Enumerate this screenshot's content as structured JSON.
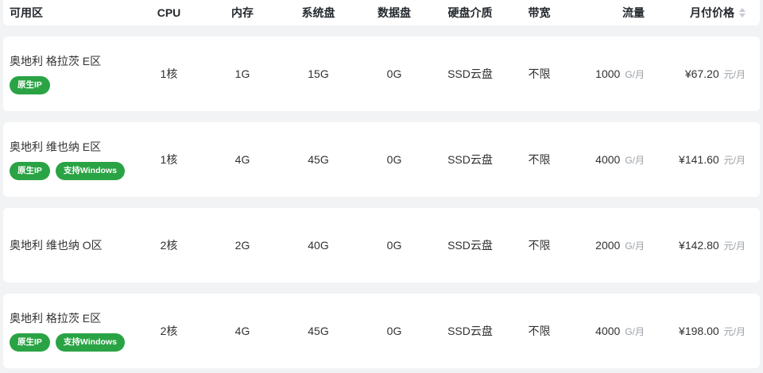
{
  "table": {
    "columns": [
      {
        "key": "zone",
        "label": "可用区"
      },
      {
        "key": "cpu",
        "label": "CPU"
      },
      {
        "key": "mem",
        "label": "内存"
      },
      {
        "key": "sys_disk",
        "label": "系统盘"
      },
      {
        "key": "data_disk",
        "label": "数据盘"
      },
      {
        "key": "disk_media",
        "label": "硬盘介质"
      },
      {
        "key": "bandwidth",
        "label": "带宽"
      },
      {
        "key": "traffic",
        "label": "流量"
      },
      {
        "key": "price",
        "label": "月付价格"
      }
    ],
    "traffic_unit": "G/月",
    "price_unit": "元/月",
    "sort_icon": "caret-up-down",
    "rows": [
      {
        "zone": "奥地利 格拉茨 E区",
        "tags": [
          "原生IP"
        ],
        "cpu": "1核",
        "mem": "1G",
        "sys_disk": "15G",
        "data_disk": "0G",
        "disk_media": "SSD云盘",
        "bandwidth": "不限",
        "traffic": "1000",
        "price": "¥67.20"
      },
      {
        "zone": "奥地利 维也纳 E区",
        "tags": [
          "原生IP",
          "支持Windows"
        ],
        "cpu": "1核",
        "mem": "4G",
        "sys_disk": "45G",
        "data_disk": "0G",
        "disk_media": "SSD云盘",
        "bandwidth": "不限",
        "traffic": "4000",
        "price": "¥141.60"
      },
      {
        "zone": "奥地利 维也纳 O区",
        "tags": [],
        "cpu": "2核",
        "mem": "2G",
        "sys_disk": "40G",
        "data_disk": "0G",
        "disk_media": "SSD云盘",
        "bandwidth": "不限",
        "traffic": "2000",
        "price": "¥142.80"
      },
      {
        "zone": "奥地利 格拉茨 E区",
        "tags": [
          "原生IP",
          "支持Windows"
        ],
        "cpu": "2核",
        "mem": "4G",
        "sys_disk": "45G",
        "data_disk": "0G",
        "disk_media": "SSD云盘",
        "bandwidth": "不限",
        "traffic": "4000",
        "price": "¥198.00"
      }
    ],
    "colors": {
      "tag_green": "#2aa344",
      "unit_gray": "#9aa0a6",
      "sort_icon_gray": "#c5c9d0",
      "row_bg": "#ffffff",
      "page_gap_bg": "#f2f3f5",
      "text_dark": "#303133"
    }
  }
}
